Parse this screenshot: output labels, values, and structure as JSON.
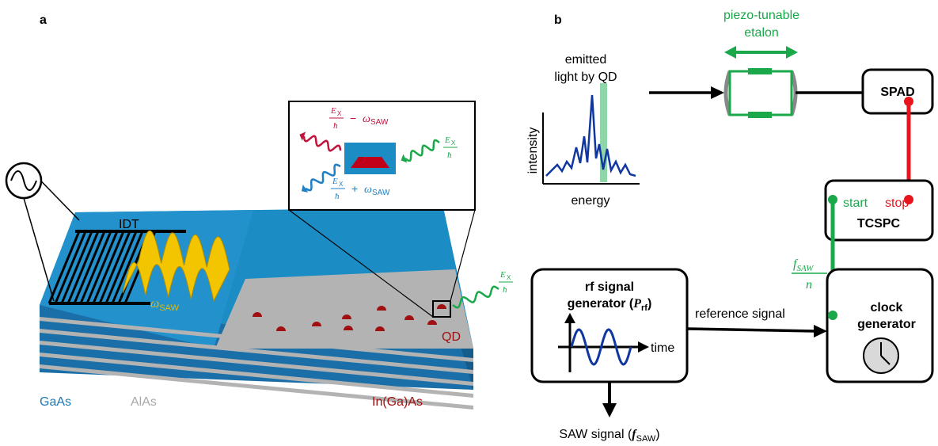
{
  "panel_a": {
    "label": "a",
    "idt": "IDT",
    "omega_saw": {
      "symbol": "ω",
      "sub": "SAW"
    },
    "qd": "QD",
    "materials": [
      "GaAs",
      "AlAs",
      "In(Ga)As"
    ],
    "inset": {
      "red": {
        "num": "E",
        "num_sub": "X",
        "den": "ħ",
        "op": "−",
        "term": "ω",
        "term_sub": "SAW"
      },
      "blue": {
        "num": "E",
        "num_sub": "X",
        "den": "ħ",
        "op": "+",
        "term": "ω",
        "term_sub": "SAW"
      },
      "green": {
        "num": "E",
        "num_sub": "X",
        "den": "ħ"
      }
    },
    "emission": {
      "num": "E",
      "num_sub": "X",
      "den": "ħ"
    }
  },
  "panel_b": {
    "label": "b",
    "etalon": [
      "piezo-tunable",
      "etalon"
    ],
    "emitted": [
      "emitted",
      "light by QD"
    ],
    "y_axis": "intensity",
    "x_axis": "energy",
    "spad": "SPAD",
    "start": "start",
    "stop": "stop",
    "tcspc": "TCSPC",
    "ratio": {
      "f": "f",
      "sub": "SAW",
      "den": "n"
    },
    "rf_generator": {
      "line1": "rf signal",
      "line2": "generator (",
      "p": "P",
      "p_sub": "rf",
      "close": ")"
    },
    "time": "time",
    "reference": "reference signal",
    "clock": [
      "clock",
      "generator"
    ],
    "saw_signal": {
      "text": "SAW signal (",
      "f": "f",
      "sub": "SAW",
      "close": ")"
    }
  }
}
